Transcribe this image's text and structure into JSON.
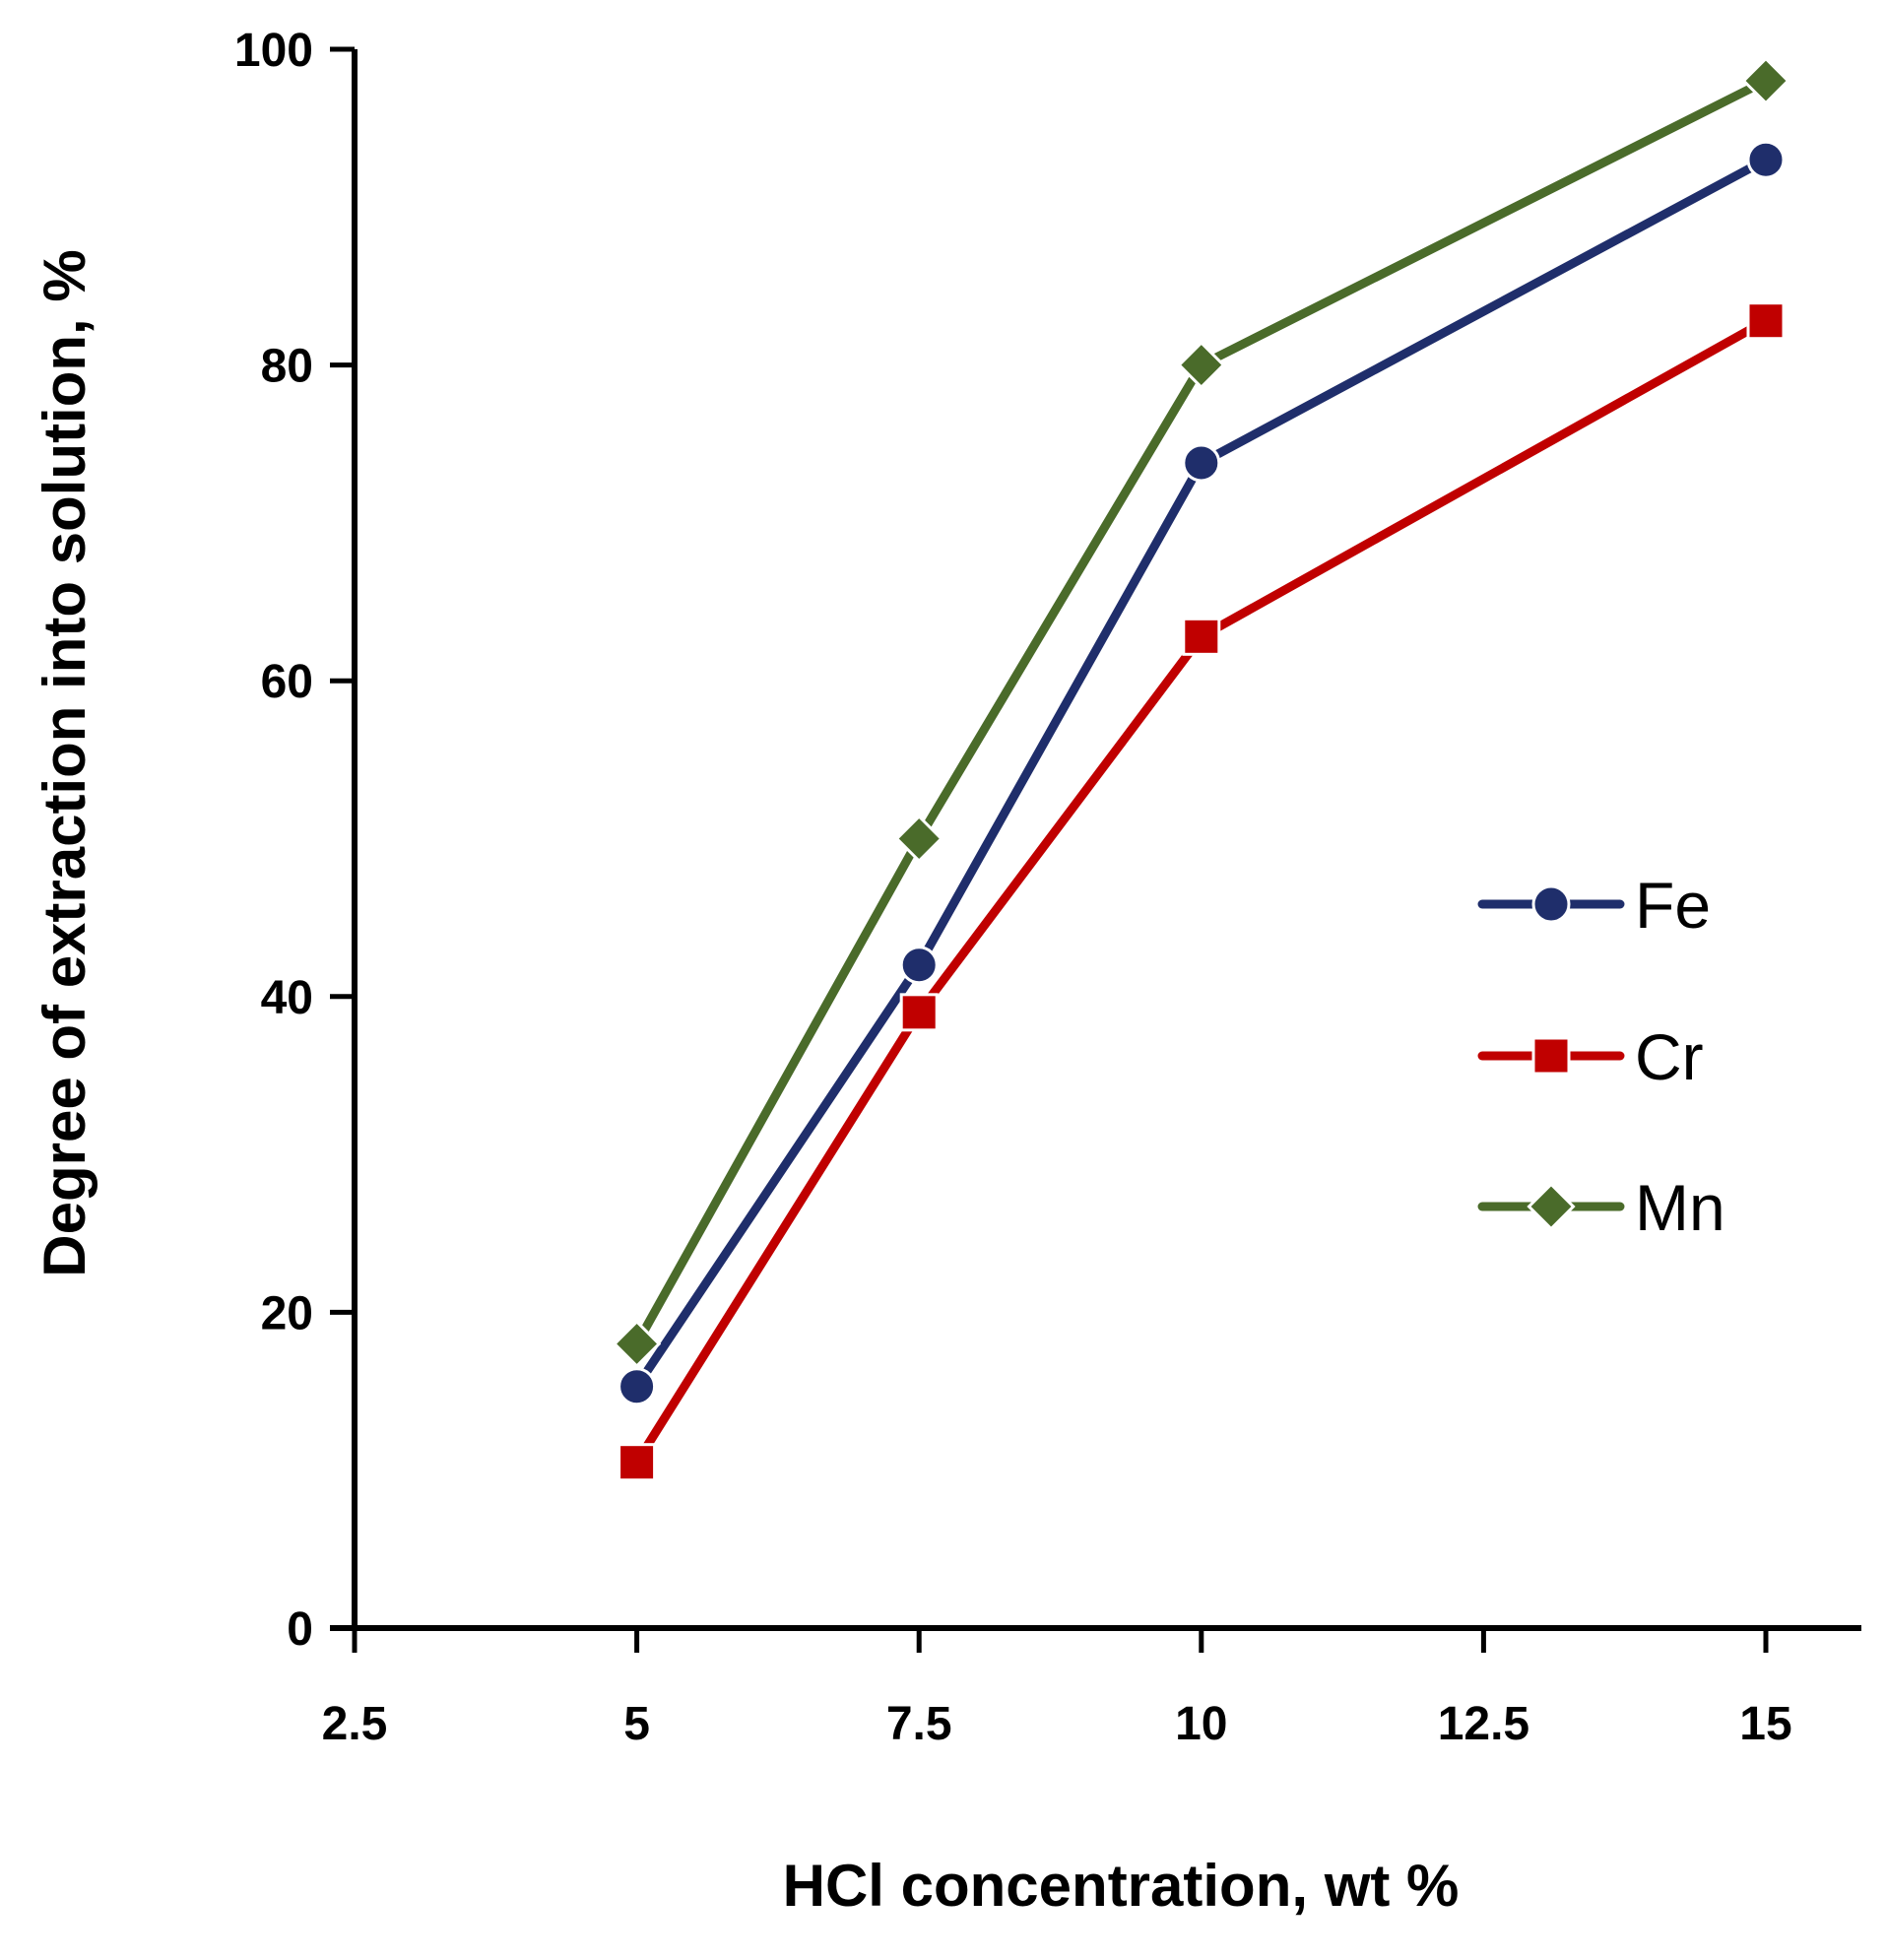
{
  "chart_data": {
    "type": "line",
    "title": "",
    "xlabel": "HCl concentration, wt %",
    "ylabel": "Degree of extraction into solution, %",
    "xlim": [
      2.5,
      15.5
    ],
    "ylim": [
      0,
      100
    ],
    "x_ticks": [
      "2.5",
      "5",
      "7.5",
      "10",
      "12.5",
      "15"
    ],
    "y_ticks": [
      "0",
      "20",
      "40",
      "60",
      "80",
      "100"
    ],
    "x": [
      5,
      7.5,
      10,
      15
    ],
    "grid": false,
    "legend_position": "center-right",
    "series": [
      {
        "name": "Fe",
        "values": [
          15.3,
          42.0,
          73.8,
          93.0
        ],
        "color": "#1F2E6B",
        "marker": "circle"
      },
      {
        "name": "Cr",
        "values": [
          10.5,
          39.0,
          62.8,
          82.8
        ],
        "color": "#C00000",
        "marker": "square"
      },
      {
        "name": "Mn",
        "values": [
          18.0,
          50.0,
          80.0,
          98.0
        ],
        "color": "#4A6B2A",
        "marker": "diamond"
      }
    ]
  }
}
